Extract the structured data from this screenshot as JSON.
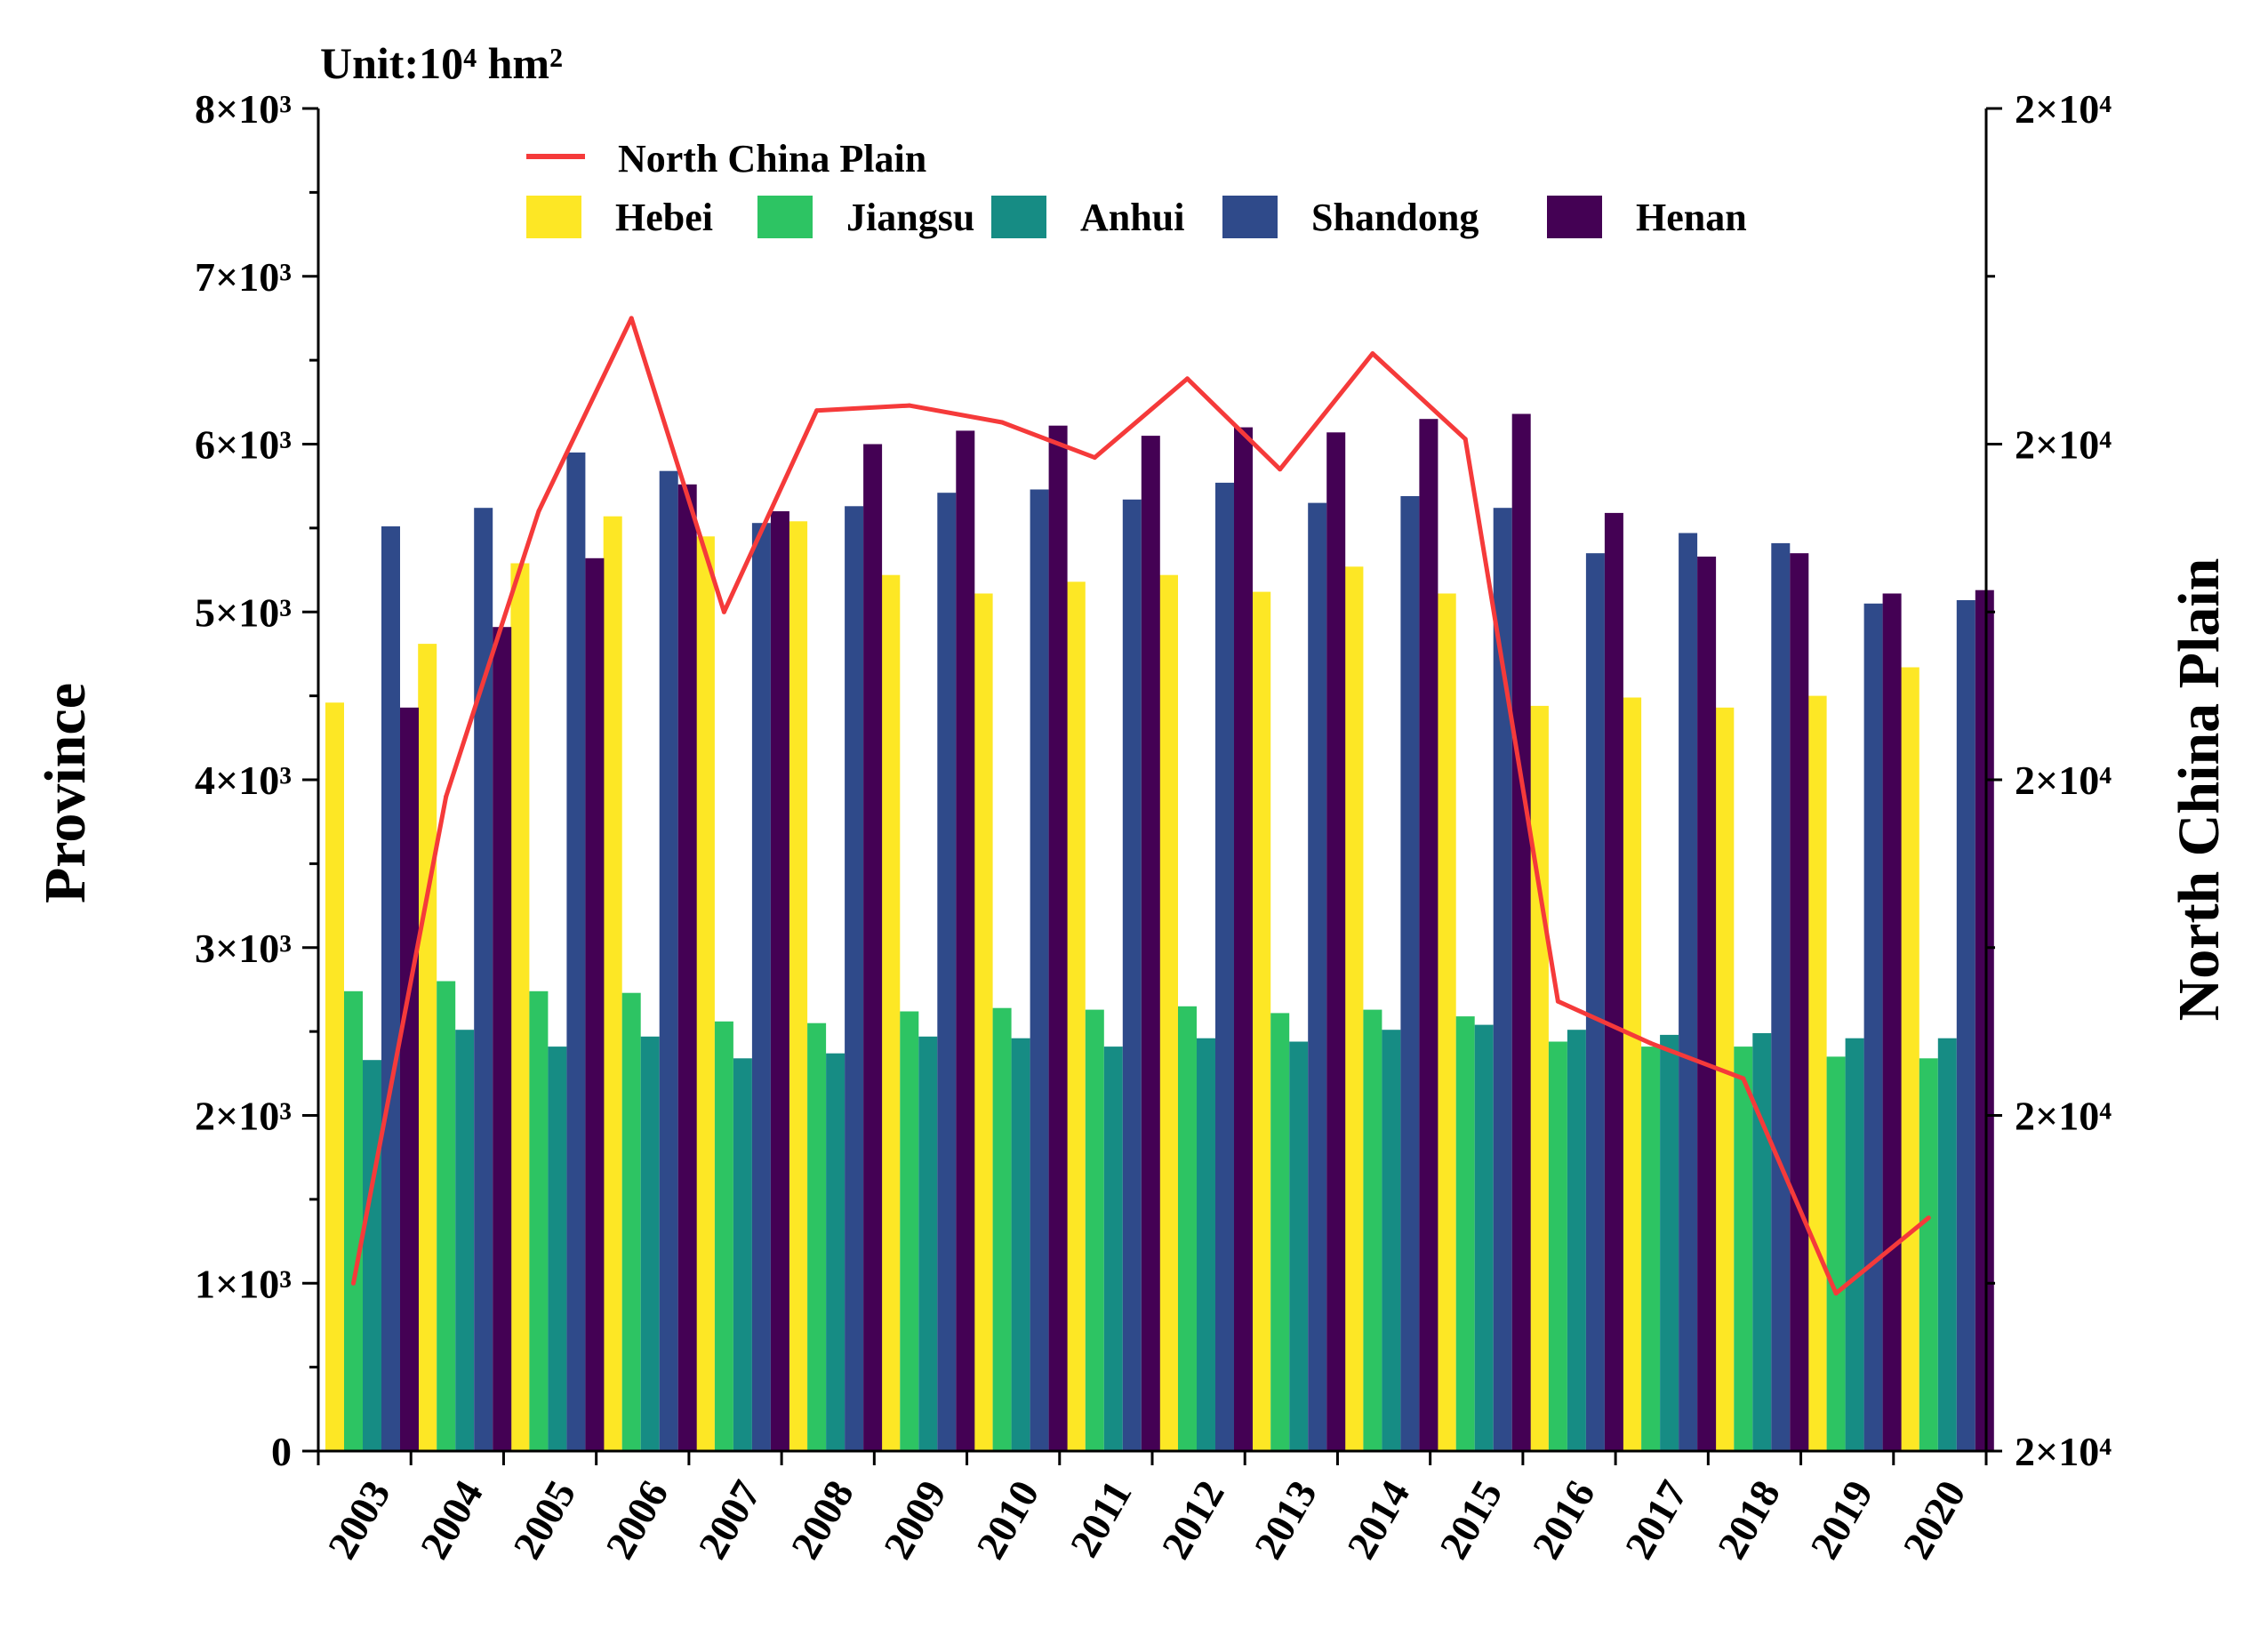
{
  "chart_data": {
    "type": "bar+line",
    "unit_label": "Unit:10⁴ hm²",
    "ylabel_left": "Province",
    "ylabel_right": "North China Plain",
    "categories": [
      "2003",
      "2004",
      "2005",
      "2006",
      "2007",
      "2008",
      "2009",
      "2010",
      "2011",
      "2012",
      "2013",
      "2014",
      "2015",
      "2016",
      "2017",
      "2018",
      "2019",
      "2020"
    ],
    "y_left": {
      "ylim": [
        0,
        8000
      ],
      "tick_labels": [
        "0",
        "1×10³",
        "2×10³",
        "3×10³",
        "4×10³",
        "5×10³",
        "6×10³",
        "7×10³",
        "8×10³"
      ]
    },
    "y_right": {
      "ylim": [
        0,
        8
      ],
      "tick_labels": [
        "2×10⁴",
        "2×10⁴",
        "2×10⁴",
        "2×10⁴",
        "2×10⁴"
      ]
    },
    "series": [
      {
        "name": "Hebei",
        "color": "#FDE725",
        "values": [
          4460,
          4810,
          5290,
          5570,
          5450,
          5540,
          5220,
          5110,
          5180,
          5220,
          5120,
          5270,
          5110,
          4440,
          4490,
          4430,
          4500,
          4670
        ]
      },
      {
        "name": "Jiangsu",
        "color": "#2DC463",
        "values": [
          2740,
          2800,
          2740,
          2730,
          2560,
          2550,
          2620,
          2640,
          2630,
          2650,
          2610,
          2630,
          2590,
          2440,
          2410,
          2410,
          2350,
          2340
        ]
      },
      {
        "name": "Anhui",
        "color": "#168C84",
        "values": [
          2330,
          2510,
          2410,
          2470,
          2340,
          2370,
          2470,
          2460,
          2410,
          2460,
          2440,
          2510,
          2540,
          2510,
          2480,
          2490,
          2460,
          2460
        ]
      },
      {
        "name": "Shandong",
        "color": "#2F4A8A",
        "values": [
          5510,
          5620,
          5950,
          5840,
          5530,
          5630,
          5710,
          5730,
          5670,
          5770,
          5650,
          5690,
          5620,
          5350,
          5470,
          5410,
          5050,
          5070
        ]
      },
      {
        "name": "Henan",
        "color": "#440154",
        "values": [
          4430,
          4910,
          5320,
          5760,
          5600,
          6000,
          6080,
          6110,
          6050,
          6100,
          6070,
          6150,
          6180,
          5590,
          5330,
          5350,
          5110,
          5130
        ]
      }
    ],
    "line": {
      "name": "North China Plain",
      "color": "#F53A3A",
      "axis": "right",
      "values": [
        1.0,
        3.9,
        5.6,
        6.75,
        5.0,
        6.2,
        6.23,
        6.13,
        5.92,
        6.39,
        5.85,
        6.54,
        6.03,
        2.68,
        2.43,
        2.22,
        0.94,
        1.39
      ]
    },
    "legend": {
      "position": "top-left",
      "line_entry": "North China Plain",
      "bar_entries": [
        "Hebei",
        "Jiangsu",
        "Anhui",
        "Shandong",
        "Henan"
      ]
    }
  }
}
